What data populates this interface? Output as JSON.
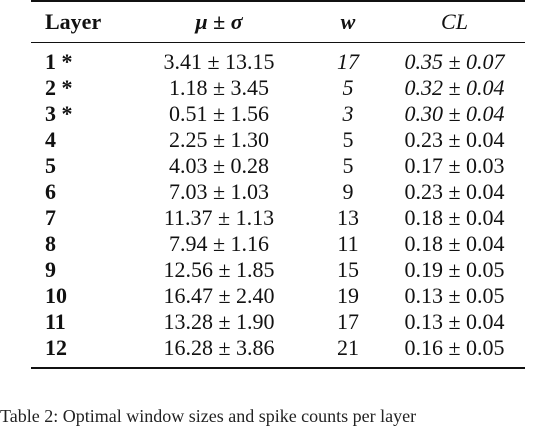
{
  "table": {
    "headers": {
      "layer": "Layer",
      "mu_sigma": "μ ± σ",
      "w": "w",
      "cl": "CL"
    },
    "rows": [
      {
        "layer": "1 *",
        "mu_sigma": "3.41 ± 13.15",
        "w": "17",
        "cl": "0.35 ± 0.07",
        "italic": true
      },
      {
        "layer": "2 *",
        "mu_sigma": "1.18 ± 3.45",
        "w": "5",
        "cl": "0.32 ± 0.04",
        "italic": true
      },
      {
        "layer": "3 *",
        "mu_sigma": "0.51 ± 1.56",
        "w": "3",
        "cl": "0.30 ± 0.04",
        "italic": true
      },
      {
        "layer": "4",
        "mu_sigma": "2.25 ± 1.30",
        "w": "5",
        "cl": "0.23 ± 0.04",
        "italic": false
      },
      {
        "layer": "5",
        "mu_sigma": "4.03 ± 0.28",
        "w": "5",
        "cl": "0.17 ± 0.03",
        "italic": false
      },
      {
        "layer": "6",
        "mu_sigma": "7.03 ± 1.03",
        "w": "9",
        "cl": "0.23 ± 0.04",
        "italic": false
      },
      {
        "layer": "7",
        "mu_sigma": "11.37 ± 1.13",
        "w": "13",
        "cl": "0.18 ± 0.04",
        "italic": false
      },
      {
        "layer": "8",
        "mu_sigma": "7.94 ± 1.16",
        "w": "11",
        "cl": "0.18 ± 0.04",
        "italic": false
      },
      {
        "layer": "9",
        "mu_sigma": "12.56 ± 1.85",
        "w": "15",
        "cl": "0.19 ± 0.05",
        "italic": false
      },
      {
        "layer": "10",
        "mu_sigma": "16.47 ± 2.40",
        "w": "19",
        "cl": "0.13 ± 0.05",
        "italic": false
      },
      {
        "layer": "11",
        "mu_sigma": "13.28 ± 1.90",
        "w": "17",
        "cl": "0.13 ± 0.04",
        "italic": false
      },
      {
        "layer": "12",
        "mu_sigma": "16.28 ± 3.86",
        "w": "21",
        "cl": "0.16 ± 0.05",
        "italic": false
      }
    ]
  },
  "caption": "Table 2: Optimal window sizes and spike counts per layer"
}
